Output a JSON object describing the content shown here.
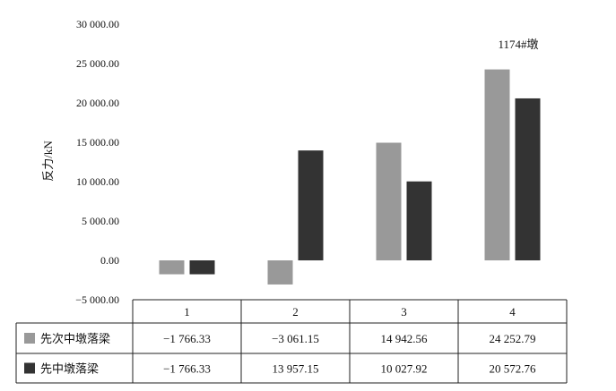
{
  "chart_data": {
    "type": "bar",
    "title": "",
    "xlabel": "",
    "ylabel": "反力/kN",
    "annotation": "1174#墩",
    "categories": [
      "1",
      "2",
      "3",
      "4"
    ],
    "ylim": [
      -5000,
      30000
    ],
    "yticks": [
      30000,
      25000,
      20000,
      15000,
      10000,
      5000,
      0,
      -5000
    ],
    "ytick_labels": [
      "30 000.00",
      "25 000.00",
      "20 000.00",
      "15 000.00",
      "10 000.00",
      "5 000.00",
      "0.00",
      "−5 000.00"
    ],
    "grid": false,
    "legend": "data-table",
    "series": [
      {
        "name": "先次中墩落梁",
        "color": "#999999",
        "values": [
          -1766.33,
          -3061.15,
          14942.56,
          24252.79
        ],
        "labels": [
          "−1 766.33",
          "−3 061.15",
          "14 942.56",
          "24 252.79"
        ]
      },
      {
        "name": "先中墩落梁",
        "color": "#333333",
        "values": [
          -1766.33,
          13957.15,
          10027.92,
          20572.76
        ],
        "labels": [
          "−1 766.33",
          "13 957.15",
          "10 027.92",
          "20 572.76"
        ]
      }
    ]
  }
}
